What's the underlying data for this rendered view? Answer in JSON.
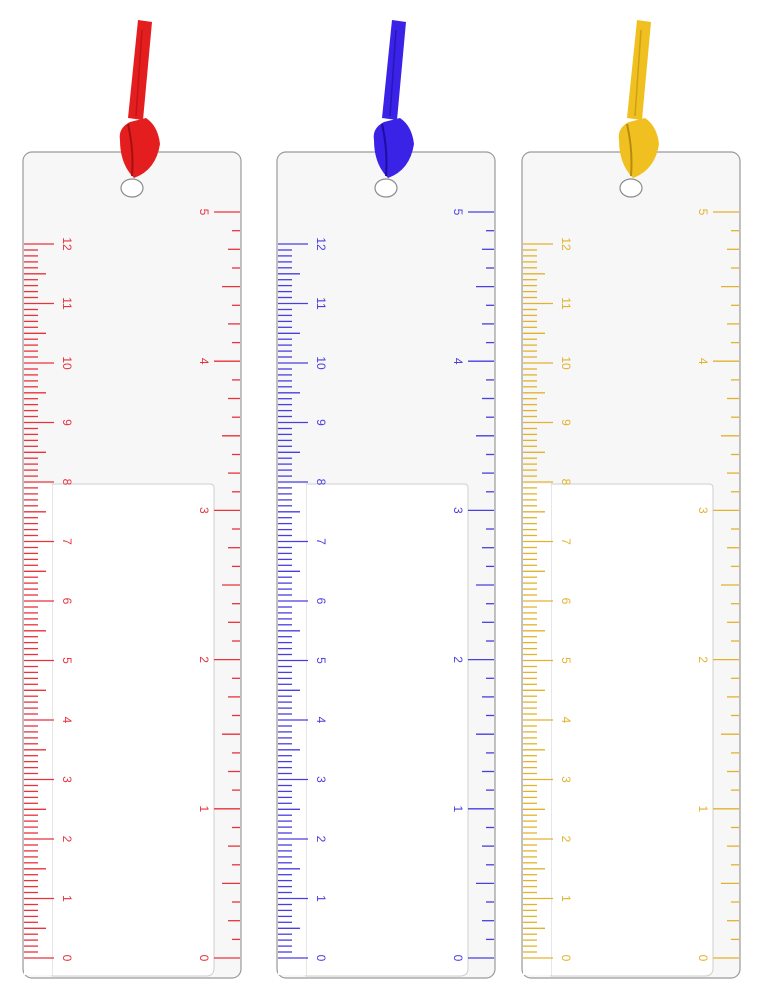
{
  "bookmarks": [
    {
      "id": "red",
      "color": "#e8323c",
      "ribbon_color": "#e41e1e",
      "ribbon_shadow": "#a80f12",
      "cm_labels": [
        "0",
        "1",
        "2",
        "3",
        "4",
        "5",
        "6",
        "7",
        "8",
        "9",
        "10",
        "11",
        "12"
      ],
      "inch_labels": [
        "0",
        "1",
        "2",
        "3",
        "4",
        "5"
      ]
    },
    {
      "id": "blue",
      "color": "#4a3ee0",
      "ribbon_color": "#3a22e6",
      "ribbon_shadow": "#1d0f9e",
      "cm_labels": [
        "0",
        "1",
        "2",
        "3",
        "4",
        "5",
        "6",
        "7",
        "8",
        "9",
        "10",
        "11",
        "12"
      ],
      "inch_labels": [
        "0",
        "1",
        "2",
        "3",
        "4",
        "5"
      ]
    },
    {
      "id": "yellow",
      "color": "#e3b22d",
      "ribbon_color": "#f0c020",
      "ribbon_shadow": "#b88a10",
      "cm_labels": [
        "0",
        "1",
        "2",
        "3",
        "4",
        "5",
        "6",
        "7",
        "8",
        "9",
        "10",
        "11",
        "12"
      ],
      "inch_labels": [
        "0",
        "1",
        "2",
        "3",
        "4",
        "5"
      ]
    }
  ]
}
